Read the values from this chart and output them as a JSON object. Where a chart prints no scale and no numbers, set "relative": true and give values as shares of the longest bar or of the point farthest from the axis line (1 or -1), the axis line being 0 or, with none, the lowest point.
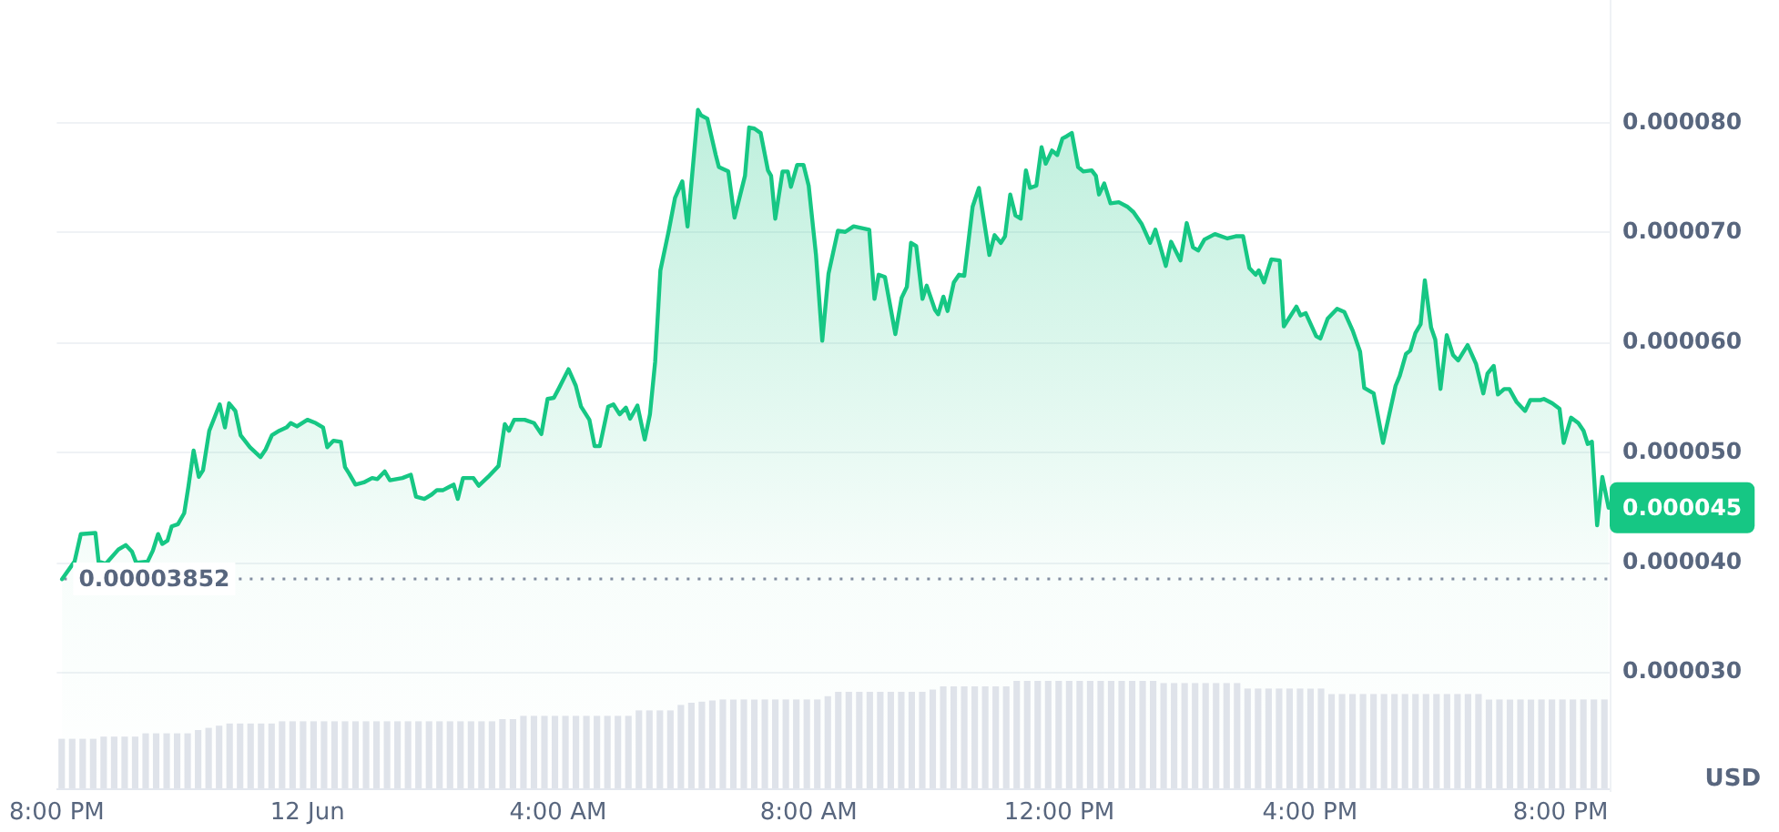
{
  "chart_data": [
    {
      "type": "area",
      "color": "#16c784",
      "marker": "none",
      "line_style": "solid",
      "grid": "y",
      "ylabel": "USD",
      "xlim": [
        "--06-11T20:00",
        "--06-12T20:47"
      ],
      "xticks": [
        {
          "value": "--06-11T20:00",
          "label": "8:00 PM"
        },
        {
          "value": "--06-12T00:00",
          "label": "12 Jun"
        },
        {
          "value": "--06-12T04:00",
          "label": "4:00 AM"
        },
        {
          "value": "--06-12T08:00",
          "label": "8:00 AM"
        },
        {
          "value": "--06-12T12:00",
          "label": "12:00 PM"
        },
        {
          "value": "--06-12T16:00",
          "label": "4:00 PM"
        },
        {
          "value": "--06-12T20:00",
          "label": "8:00 PM"
        }
      ],
      "ylim": [
        1.93e-05,
        9.12e-05
      ],
      "yticks": [
        {
          "value": 3e-05,
          "label": "0.000030"
        },
        {
          "value": 4e-05,
          "label": "0.000040"
        },
        {
          "value": 5e-05,
          "label": "0.000050"
        },
        {
          "value": 6e-05,
          "label": "0.000060"
        },
        {
          "value": 7e-05,
          "label": "0.000070"
        },
        {
          "value": 8e-05,
          "label": "0.000080"
        }
      ],
      "x": [
        "--06-11T20:05",
        "--06-11T20:17",
        "--06-11T20:23",
        "--06-11T20:37",
        "--06-11T20:40",
        "--06-11T20:47",
        "--06-11T20:59",
        "--06-11T21:06",
        "--06-11T21:12",
        "--06-11T21:16",
        "--06-11T21:27",
        "--06-11T21:32",
        "--06-11T21:37",
        "--06-11T21:41",
        "--06-11T21:46",
        "--06-11T21:50",
        "--06-11T21:56",
        "--06-11T22:02",
        "--06-11T22:06",
        "--06-11T22:11",
        "--06-11T22:16",
        "--06-11T22:20",
        "--06-11T22:26",
        "--06-11T22:31",
        "--06-11T22:36",
        "--06-11T22:41",
        "--06-11T22:45",
        "--06-11T22:51",
        "--06-11T22:56",
        "--06-11T23:05",
        "--06-11T23:15",
        "--06-11T23:20",
        "--06-11T23:26",
        "--06-11T23:33",
        "--06-11T23:40",
        "--06-11T23:44",
        "--06-11T23:50",
        "--06-12T00:00",
        "--06-12T00:08",
        "--06-12T00:15",
        "--06-12T00:19",
        "--06-12T00:25",
        "--06-12T00:32",
        "--06-12T00:36",
        "--06-12T00:40",
        "--06-12T00:46",
        "--06-12T00:54",
        "--06-12T01:02",
        "--06-12T01:07",
        "--06-12T01:14",
        "--06-12T01:19",
        "--06-12T01:31",
        "--06-12T01:39",
        "--06-12T01:44",
        "--06-12T01:52",
        "--06-12T01:59",
        "--06-12T02:04",
        "--06-12T02:10",
        "--06-12T02:16",
        "--06-12T02:20",
        "--06-12T02:24",
        "--06-12T02:29",
        "--06-12T02:39",
        "--06-12T02:44",
        "--06-12T02:53",
        "--06-12T03:03",
        "--06-12T03:09",
        "--06-12T03:13",
        "--06-12T03:18",
        "--06-12T03:28",
        "--06-12T03:37",
        "--06-12T03:44",
        "--06-12T03:50",
        "--06-12T03:56",
        "--06-12T04:01",
        "--06-12T04:10",
        "--06-12T04:17",
        "--06-12T04:22",
        "--06-12T04:30",
        "--06-12T04:35",
        "--06-12T04:40",
        "--06-12T04:48",
        "--06-12T04:53",
        "--06-12T04:59",
        "--06-12T05:05",
        "--06-12T05:09",
        "--06-12T05:16",
        "--06-12T05:23",
        "--06-12T05:28",
        "--06-12T05:33",
        "--06-12T05:38",
        "--06-12T05:46",
        "--06-12T05:52",
        "--06-12T05:59",
        "--06-12T06:04",
        "--06-12T06:14",
        "--06-12T06:17",
        "--06-12T06:23",
        "--06-12T06:31",
        "--06-12T06:34",
        "--06-12T06:43",
        "--06-12T06:49",
        "--06-12T06:59",
        "--06-12T07:03",
        "--06-12T07:08",
        "--06-12T07:14",
        "--06-12T07:21",
        "--06-12T07:24",
        "--06-12T07:28",
        "--06-12T07:35",
        "--06-12T07:40",
        "--06-12T07:43",
        "--06-12T07:49",
        "--06-12T07:55",
        "--06-12T08:00",
        "--06-12T08:07",
        "--06-12T08:13",
        "--06-12T08:19",
        "--06-12T08:28",
        "--06-12T08:35",
        "--06-12T08:43",
        "--06-12T08:58",
        "--06-12T09:03",
        "--06-12T09:07",
        "--06-12T09:13",
        "--06-12T09:23",
        "--06-12T09:29",
        "--06-12T09:34",
        "--06-12T09:38",
        "--06-12T09:43",
        "--06-12T09:49",
        "--06-12T09:53",
        "--06-12T10:01",
        "--06-12T10:04",
        "--06-12T10:09",
        "--06-12T10:13",
        "--06-12T10:19",
        "--06-12T10:24",
        "--06-12T10:29",
        "--06-12T10:37",
        "--06-12T10:43",
        "--06-12T10:53",
        "--06-12T10:58",
        "--06-12T11:04",
        "--06-12T11:08",
        "--06-12T11:13",
        "--06-12T11:18",
        "--06-12T11:23",
        "--06-12T11:28",
        "--06-12T11:32",
        "--06-12T11:38",
        "--06-12T11:43",
        "--06-12T11:47",
        "--06-12T11:53",
        "--06-12T11:58",
        "--06-12T12:03",
        "--06-12T12:07",
        "--06-12T12:12",
        "--06-12T12:18",
        "--06-12T12:23",
        "--06-12T12:31",
        "--06-12T12:35",
        "--06-12T12:38",
        "--06-12T12:43",
        "--06-12T12:49",
        "--06-12T12:57",
        "--06-12T13:05",
        "--06-12T13:11",
        "--06-12T13:19",
        "--06-12T13:27",
        "--06-12T13:32",
        "--06-12T13:42",
        "--06-12T13:47",
        "--06-12T13:56",
        "--06-12T14:02",
        "--06-12T14:08",
        "--06-12T14:13",
        "--06-12T14:19",
        "--06-12T14:29",
        "--06-12T14:41",
        "--06-12T14:49",
        "--06-12T14:56",
        "--06-12T15:02",
        "--06-12T15:08",
        "--06-12T15:11",
        "--06-12T15:16",
        "--06-12T15:23",
        "--06-12T15:31",
        "--06-12T15:35",
        "--06-12T15:47",
        "--06-12T15:51",
        "--06-12T15:56",
        "--06-12T16:06",
        "--06-12T16:10",
        "--06-12T16:17",
        "--06-12T16:26",
        "--06-12T16:33",
        "--06-12T16:41",
        "--06-12T16:48",
        "--06-12T16:52",
        "--06-12T17:01",
        "--06-12T17:10",
        "--06-12T17:22",
        "--06-12T17:26",
        "--06-12T17:32",
        "--06-12T17:36",
        "--06-12T17:41",
        "--06-12T17:46",
        "--06-12T17:50",
        "--06-12T17:56",
        "--06-12T18:00",
        "--06-12T18:05",
        "--06-12T18:11",
        "--06-12T18:17",
        "--06-12T18:22",
        "--06-12T18:31",
        "--06-12T18:39",
        "--06-12T18:46",
        "--06-12T18:50",
        "--06-12T18:56",
        "--06-12T19:00",
        "--06-12T19:06",
        "--06-12T19:11",
        "--06-12T19:18",
        "--06-12T19:26",
        "--06-12T19:31",
        "--06-12T19:41",
        "--06-12T19:44",
        "--06-12T19:52",
        "--06-12T19:59",
        "--06-12T20:03",
        "--06-12T20:10",
        "--06-12T20:17",
        "--06-12T20:22",
        "--06-12T20:26",
        "--06-12T20:30",
        "--06-12T20:35",
        "--06-12T20:40",
        "--06-12T20:46"
      ],
      "values": [
        3.85e-05,
        4.01e-05,
        4.26e-05,
        4.27e-05,
        4.01e-05,
        3.99e-05,
        4.12e-05,
        4.16e-05,
        4.1e-05,
        4e-05,
        4.01e-05,
        4.11e-05,
        4.26e-05,
        4.17e-05,
        4.2e-05,
        4.33e-05,
        4.35e-05,
        4.45e-05,
        4.69e-05,
        5.02e-05,
        4.78e-05,
        4.84e-05,
        5.2e-05,
        5.32e-05,
        5.44e-05,
        5.23e-05,
        5.45e-05,
        5.38e-05,
        5.16e-05,
        5.05e-05,
        4.96e-05,
        5.03e-05,
        5.16e-05,
        5.2e-05,
        5.23e-05,
        5.27e-05,
        5.24e-05,
        5.3e-05,
        5.27e-05,
        5.23e-05,
        5.05e-05,
        5.11e-05,
        5.1e-05,
        4.87e-05,
        4.81e-05,
        4.71e-05,
        4.73e-05,
        4.77e-05,
        4.76e-05,
        4.83e-05,
        4.75e-05,
        4.77e-05,
        4.8e-05,
        4.6e-05,
        4.58e-05,
        4.62e-05,
        4.66e-05,
        4.66e-05,
        4.69e-05,
        4.71e-05,
        4.58e-05,
        4.77e-05,
        4.77e-05,
        4.7e-05,
        4.78e-05,
        4.88e-05,
        5.26e-05,
        5.2e-05,
        5.3e-05,
        5.3e-05,
        5.27e-05,
        5.17e-05,
        5.49e-05,
        5.5e-05,
        5.59e-05,
        5.76e-05,
        5.61e-05,
        5.42e-05,
        5.3e-05,
        5.06e-05,
        5.06e-05,
        5.42e-05,
        5.44e-05,
        5.35e-05,
        5.41e-05,
        5.31e-05,
        5.43e-05,
        5.12e-05,
        5.35e-05,
        5.83e-05,
        6.66e-05,
        7.02e-05,
        7.32e-05,
        7.47e-05,
        7.06e-05,
        8.12e-05,
        8.07e-05,
        8.04e-05,
        7.71e-05,
        7.6e-05,
        7.56e-05,
        7.14e-05,
        7.52e-05,
        7.96e-05,
        7.95e-05,
        7.91e-05,
        7.57e-05,
        7.52e-05,
        7.13e-05,
        7.56e-05,
        7.56e-05,
        7.42e-05,
        7.62e-05,
        7.62e-05,
        7.43e-05,
        6.8e-05,
        6.02e-05,
        6.63e-05,
        7.02e-05,
        7.01e-05,
        7.06e-05,
        7.03e-05,
        6.4e-05,
        6.62e-05,
        6.6e-05,
        6.08e-05,
        6.41e-05,
        6.51e-05,
        6.91e-05,
        6.88e-05,
        6.4e-05,
        6.52e-05,
        6.3e-05,
        6.26e-05,
        6.42e-05,
        6.29e-05,
        6.55e-05,
        6.62e-05,
        6.61e-05,
        7.24e-05,
        7.41e-05,
        6.8e-05,
        6.98e-05,
        6.91e-05,
        6.97e-05,
        7.35e-05,
        7.16e-05,
        7.13e-05,
        7.57e-05,
        7.41e-05,
        7.43e-05,
        7.78e-05,
        7.63e-05,
        7.75e-05,
        7.71e-05,
        7.86e-05,
        7.88e-05,
        7.91e-05,
        7.6e-05,
        7.56e-05,
        7.57e-05,
        7.52e-05,
        7.35e-05,
        7.45e-05,
        7.27e-05,
        7.28e-05,
        7.24e-05,
        7.19e-05,
        7.08e-05,
        6.91e-05,
        7.03e-05,
        6.7e-05,
        6.92e-05,
        6.75e-05,
        7.09e-05,
        6.87e-05,
        6.84e-05,
        6.94e-05,
        6.99e-05,
        6.95e-05,
        6.97e-05,
        6.97e-05,
        6.68e-05,
        6.62e-05,
        6.66e-05,
        6.55e-05,
        6.76e-05,
        6.75e-05,
        6.15e-05,
        6.33e-05,
        6.25e-05,
        6.27e-05,
        6.06e-05,
        6.04e-05,
        6.22e-05,
        6.31e-05,
        6.28e-05,
        6.11e-05,
        5.92e-05,
        5.59e-05,
        5.54e-05,
        5.09e-05,
        5.61e-05,
        5.7e-05,
        5.9e-05,
        5.93e-05,
        6.09e-05,
        6.17e-05,
        6.57e-05,
        6.14e-05,
        6.03e-05,
        5.58e-05,
        6.07e-05,
        5.89e-05,
        5.84e-05,
        5.98e-05,
        5.81e-05,
        5.54e-05,
        5.72e-05,
        5.79e-05,
        5.53e-05,
        5.58e-05,
        5.58e-05,
        5.46e-05,
        5.38e-05,
        5.48e-05,
        5.48e-05,
        5.49e-05,
        5.45e-05,
        5.4e-05,
        5.09e-05,
        5.32e-05,
        5.27e-05,
        5.2e-05,
        5.08e-05,
        5.1e-05,
        4.34e-05,
        4.78e-05,
        4.5e-05
      ],
      "ref_lines": [
        {
          "axis": "y",
          "value": 3.852e-05,
          "label": "0.00003852",
          "color": "#858ca2",
          "line_style": "dotted"
        }
      ],
      "annotations": [
        {
          "text": "0.000045",
          "x": "--06-12T20:46",
          "y": 4.5e-05
        }
      ]
    },
    {
      "type": "bar",
      "relative": true,
      "color": "#dfe3ea",
      "tick_labels": false,
      "categories": [
        null,
        null,
        null,
        null,
        null,
        null,
        null,
        null,
        null,
        null,
        null,
        null,
        null,
        null,
        null,
        null,
        null,
        null,
        null,
        null,
        null,
        null,
        null,
        null,
        null,
        null,
        null,
        null,
        null,
        null,
        null,
        null,
        null,
        null,
        null,
        null,
        null,
        null,
        null,
        null,
        null,
        null,
        null,
        null,
        null,
        null,
        null,
        null,
        null,
        null,
        null,
        null,
        null,
        null,
        null,
        null,
        null,
        null,
        null,
        null,
        null,
        null,
        null,
        null,
        null,
        null,
        null,
        null,
        null,
        null,
        null,
        null,
        null,
        null,
        null,
        null,
        null,
        null,
        null,
        null,
        null,
        null,
        null,
        null,
        null,
        null,
        null,
        null,
        null,
        null,
        null,
        null,
        null,
        null,
        null,
        null,
        null,
        null,
        null,
        null,
        null,
        null,
        null,
        null,
        null,
        null,
        null,
        null,
        null,
        null,
        null,
        null,
        null,
        null,
        null,
        null,
        null,
        null,
        null,
        null,
        null,
        null,
        null,
        null,
        null,
        null,
        null,
        null,
        null,
        null,
        null,
        null,
        null,
        null,
        null,
        null,
        null,
        null,
        null,
        null,
        null,
        null,
        null,
        null,
        null,
        null,
        null,
        null
      ],
      "values": [
        0.47,
        0.47,
        0.47,
        0.47,
        0.49,
        0.49,
        0.49,
        0.49,
        0.52,
        0.52,
        0.52,
        0.52,
        0.52,
        0.55,
        0.57,
        0.59,
        0.61,
        0.61,
        0.61,
        0.61,
        0.61,
        0.63,
        0.63,
        0.63,
        0.63,
        0.63,
        0.63,
        0.63,
        0.63,
        0.63,
        0.63,
        0.63,
        0.63,
        0.63,
        0.63,
        0.63,
        0.63,
        0.63,
        0.63,
        0.63,
        0.63,
        0.63,
        0.65,
        0.65,
        0.68,
        0.68,
        0.68,
        0.68,
        0.68,
        0.68,
        0.68,
        0.68,
        0.68,
        0.68,
        0.68,
        0.73,
        0.73,
        0.73,
        0.73,
        0.78,
        0.8,
        0.81,
        0.82,
        0.83,
        0.83,
        0.83,
        0.83,
        0.83,
        0.83,
        0.83,
        0.83,
        0.83,
        0.83,
        0.86,
        0.9,
        0.9,
        0.9,
        0.9,
        0.9,
        0.9,
        0.9,
        0.9,
        0.9,
        0.92,
        0.95,
        0.95,
        0.95,
        0.95,
        0.95,
        0.95,
        0.95,
        1,
        1,
        1,
        1,
        1,
        1,
        1,
        1,
        1,
        1,
        1,
        1,
        1,
        1,
        0.98,
        0.98,
        0.98,
        0.98,
        0.98,
        0.98,
        0.98,
        0.98,
        0.93,
        0.93,
        0.93,
        0.93,
        0.93,
        0.93,
        0.93,
        0.93,
        0.88,
        0.88,
        0.88,
        0.88,
        0.88,
        0.88,
        0.88,
        0.88,
        0.88,
        0.88,
        0.88,
        0.88,
        0.88,
        0.88,
        0.88,
        0.83,
        0.83,
        0.83,
        0.83,
        0.83,
        0.83,
        0.83,
        0.83,
        0.83,
        0.83,
        0.83,
        0.83
      ]
    }
  ]
}
